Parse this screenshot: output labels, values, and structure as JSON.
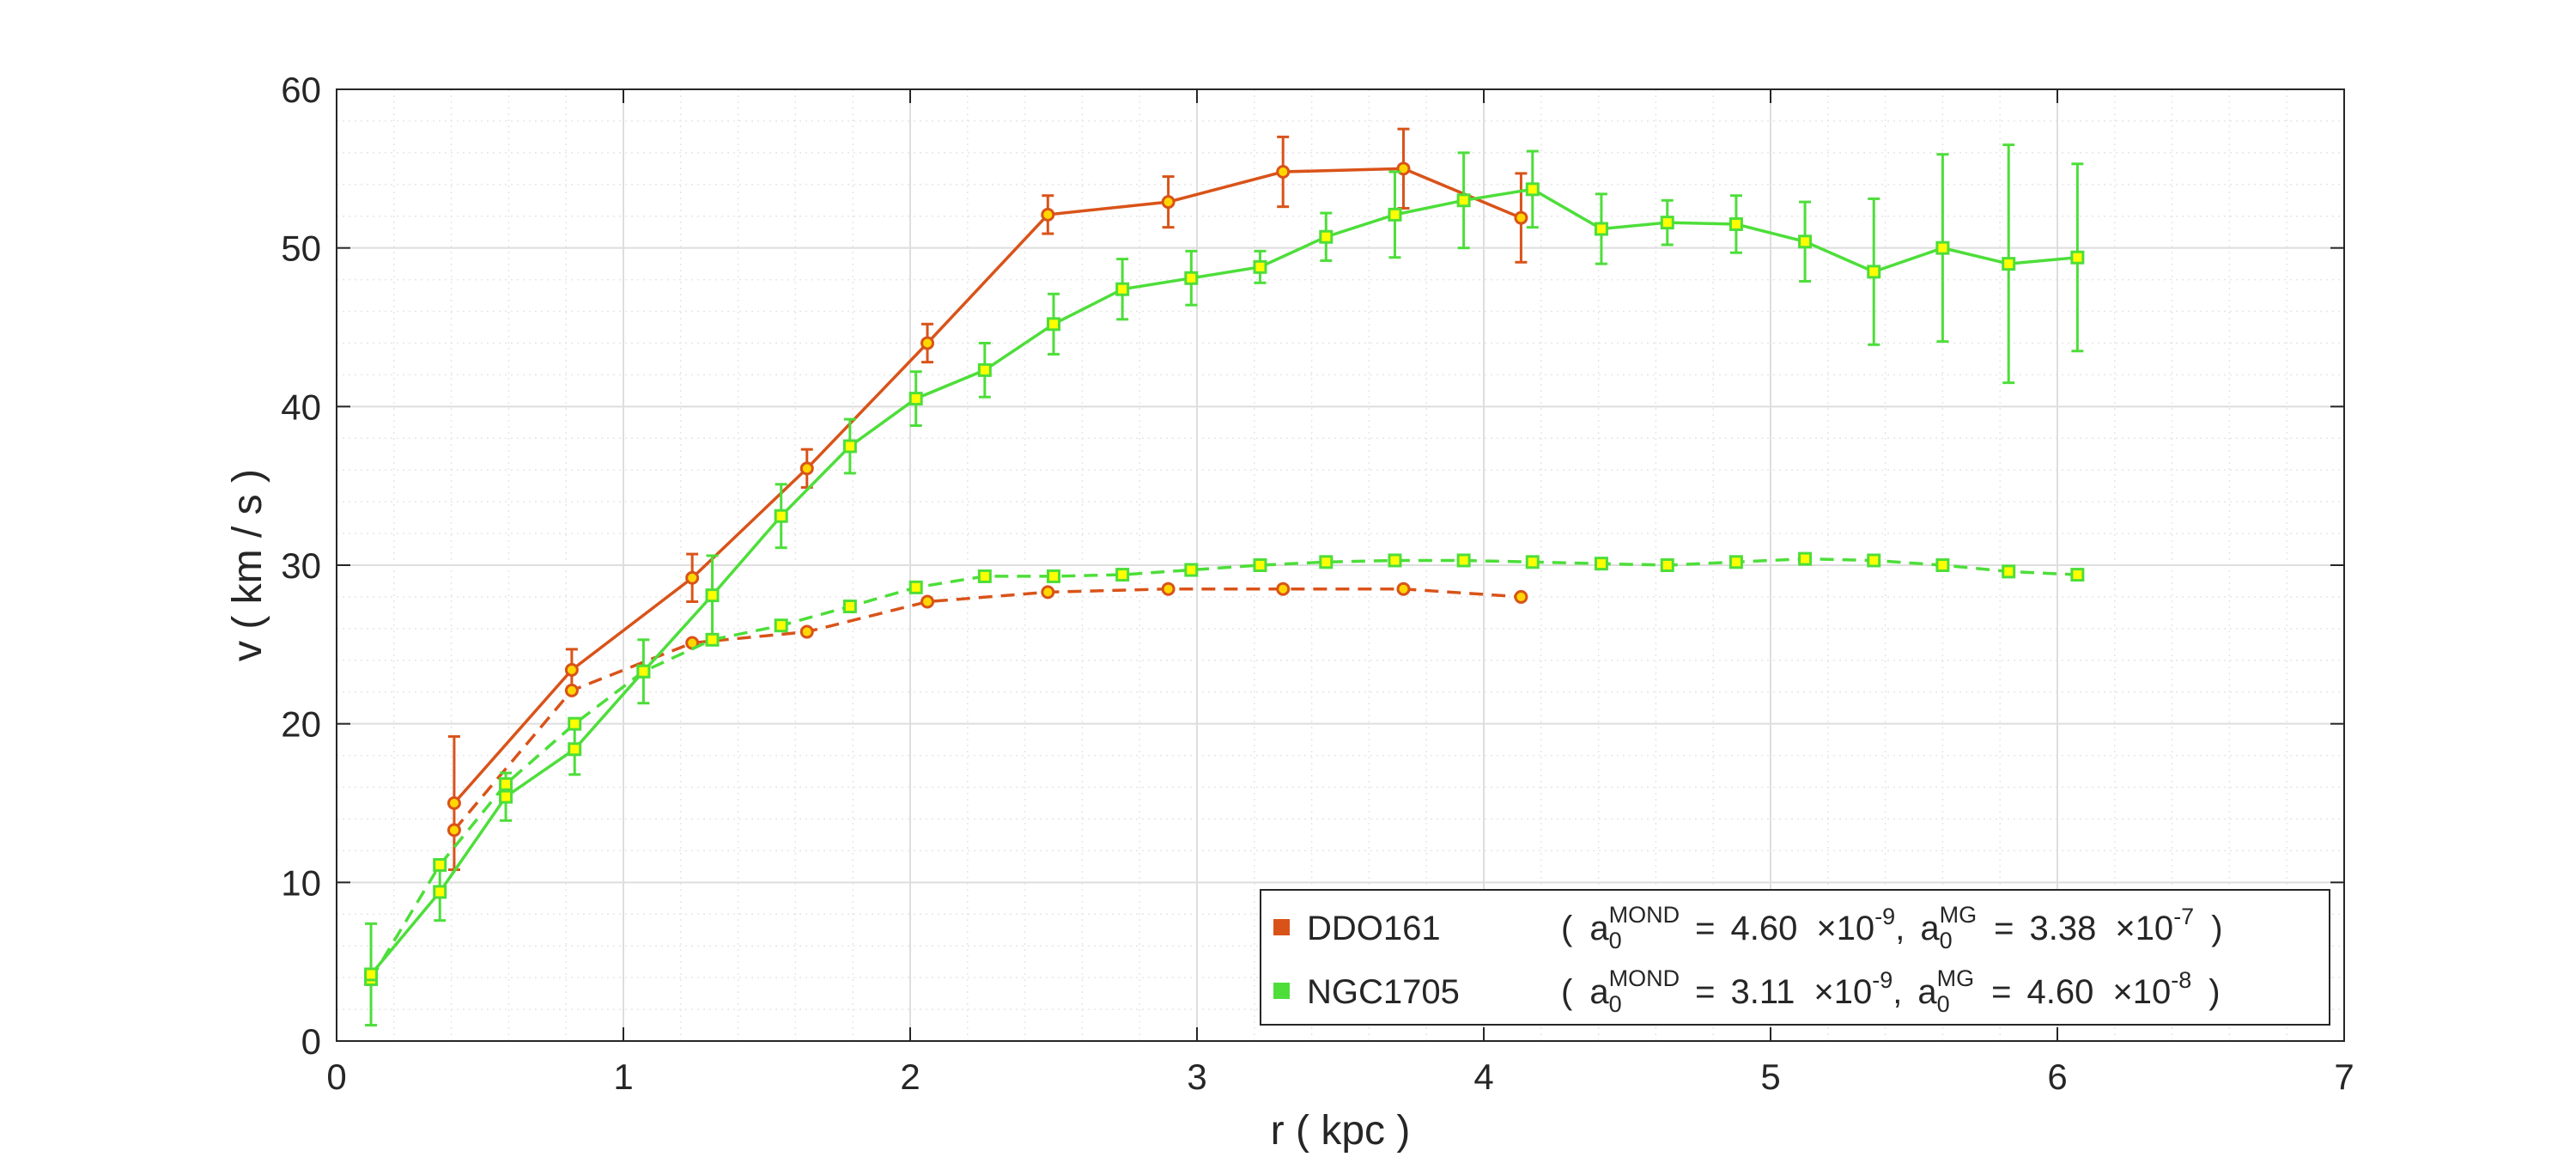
{
  "chart_data": {
    "type": "line",
    "title": "",
    "xlabel": "r ( kpc )",
    "ylabel": "v ( km / s )",
    "xlim": [
      0,
      7
    ],
    "ylim": [
      0,
      60
    ],
    "xticks": [
      0,
      1,
      2,
      3,
      4,
      5,
      6,
      7
    ],
    "yticks": [
      0,
      10,
      20,
      30,
      40,
      50,
      60
    ],
    "xtick_labels": [
      "0",
      "1",
      "2",
      "3",
      "4",
      "5",
      "6",
      "7"
    ],
    "ytick_labels": [
      "0",
      "10",
      "20",
      "30",
      "40",
      "50",
      "60"
    ],
    "grid": true,
    "legend_position": "bottom-right",
    "series": [
      {
        "name": "DDO161",
        "color": "#d95319",
        "marker_face": "#ffd700",
        "marker": "circle",
        "observed": {
          "x": [
            0.41,
            0.82,
            1.24,
            1.64,
            2.06,
            2.48,
            2.9,
            3.3,
            3.72,
            4.13
          ],
          "y": [
            15.0,
            23.4,
            29.2,
            36.1,
            44.0,
            52.1,
            52.9,
            54.8,
            55.0,
            51.9
          ],
          "err": [
            4.2,
            1.3,
            1.5,
            1.2,
            1.2,
            1.2,
            1.6,
            2.2,
            2.5,
            2.8
          ]
        },
        "model": {
          "x": [
            0.41,
            0.82,
            1.24,
            1.64,
            2.06,
            2.48,
            2.9,
            3.3,
            3.72,
            4.13
          ],
          "y": [
            13.3,
            22.1,
            25.1,
            25.8,
            27.7,
            28.3,
            28.5,
            28.5,
            28.5,
            28.0
          ]
        },
        "legend_label": "DDO161",
        "param_text": {
          "open": "(",
          "a_symbol": "a",
          "sub": "0",
          "sup1": "MOND",
          "eq": "=",
          "value1": "4.60",
          "times1": "×10",
          "exp1": "-9",
          "comma": ",",
          "sup2": "MG",
          "value2": "3.38",
          "times2": "×10",
          "exp2": "-7",
          "close": ")"
        }
      },
      {
        "name": "NGC1705",
        "color": "#4dde3a",
        "marker_face": "#ffff00",
        "marker": "square",
        "observed": {
          "x": [
            0.12,
            0.36,
            0.59,
            0.83,
            1.07,
            1.31,
            1.55,
            1.79,
            2.02,
            2.26,
            2.5,
            2.74,
            2.98,
            3.22,
            3.45,
            3.69,
            3.93,
            4.17,
            4.41,
            4.64,
            4.88,
            5.12,
            5.36,
            5.6,
            5.83,
            6.07
          ],
          "y": [
            4.2,
            9.4,
            15.4,
            18.4,
            23.3,
            28.1,
            33.1,
            37.5,
            40.5,
            42.3,
            45.2,
            47.4,
            48.1,
            48.8,
            50.7,
            52.1,
            53.0,
            53.7,
            51.2,
            51.6,
            51.5,
            50.4,
            48.5,
            50.0,
            49.0,
            49.4
          ],
          "err": [
            3.2,
            1.8,
            1.5,
            1.6,
            2.0,
            2.5,
            2.0,
            1.7,
            1.7,
            1.7,
            1.9,
            1.9,
            1.7,
            1.0,
            1.5,
            2.7,
            3.0,
            2.4,
            2.2,
            1.4,
            1.8,
            2.5,
            4.6,
            5.9,
            7.5,
            5.9
          ]
        },
        "model": {
          "x": [
            0.12,
            0.36,
            0.59,
            0.83,
            1.07,
            1.31,
            1.55,
            1.79,
            2.02,
            2.26,
            2.5,
            2.74,
            2.98,
            3.22,
            3.45,
            3.69,
            3.93,
            4.17,
            4.41,
            4.64,
            4.88,
            5.12,
            5.36,
            5.6,
            5.83,
            6.07
          ],
          "y": [
            3.9,
            11.1,
            16.2,
            20.0,
            23.3,
            25.3,
            26.2,
            27.4,
            28.6,
            29.3,
            29.3,
            29.4,
            29.7,
            30.0,
            30.2,
            30.3,
            30.3,
            30.2,
            30.1,
            30.0,
            30.2,
            30.4,
            30.3,
            30.0,
            29.6,
            29.4
          ]
        },
        "legend_label": "NGC1705",
        "param_text": {
          "open": "(",
          "a_symbol": "a",
          "sub": "0",
          "sup1": "MOND",
          "eq": "=",
          "value1": "3.11",
          "times1": "×10",
          "exp1": "-9",
          "comma": ",",
          "sup2": "MG",
          "value2": "4.60",
          "times2": "×10",
          "exp2": "-8",
          "close": ")"
        }
      }
    ]
  }
}
